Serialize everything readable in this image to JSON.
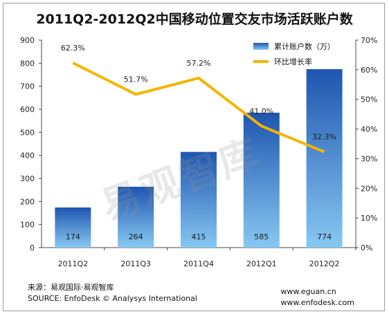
{
  "chart_data": {
    "type": "bar",
    "title": "2011Q2-2012Q2中国移动位置交友市场活跃账户数",
    "categories": [
      "2011Q2",
      "2011Q3",
      "2011Q4",
      "2012Q1",
      "2012Q2"
    ],
    "series": [
      {
        "name": "累计账户数（万）",
        "type": "bar",
        "axis": "left",
        "values": [
          174,
          264,
          415,
          585,
          774
        ]
      },
      {
        "name": "环比增长率",
        "type": "line",
        "axis": "right",
        "values": [
          62.3,
          51.7,
          57.2,
          41.0,
          32.3
        ]
      }
    ],
    "rate_labels": [
      "62.3%",
      "51.7%",
      "57.2%",
      "41.0%",
      "32.3%"
    ],
    "y_left": {
      "ylim": [
        0,
        900
      ],
      "ticks": [
        "0",
        "100",
        "200",
        "300",
        "400",
        "500",
        "600",
        "700",
        "800",
        "900"
      ]
    },
    "y_right": {
      "ylim": [
        0,
        70
      ],
      "ticks": [
        "0%",
        "10%",
        "20%",
        "30%",
        "40%",
        "50%",
        "60%",
        "70%"
      ]
    },
    "grid": false,
    "legend_position": "top-right",
    "colors": {
      "bar_top": "#1f55b0",
      "bar_bottom": "#87c8f2",
      "line": "#f4b400"
    }
  },
  "watermark": "易观智库",
  "footer": {
    "source_cn": "来源：易观国际·易观智库",
    "source_en": "SOURCE: EnfoDesk © Analysys International",
    "url1": "www.eguan.cn",
    "url2": "www.enfodesk.com"
  }
}
